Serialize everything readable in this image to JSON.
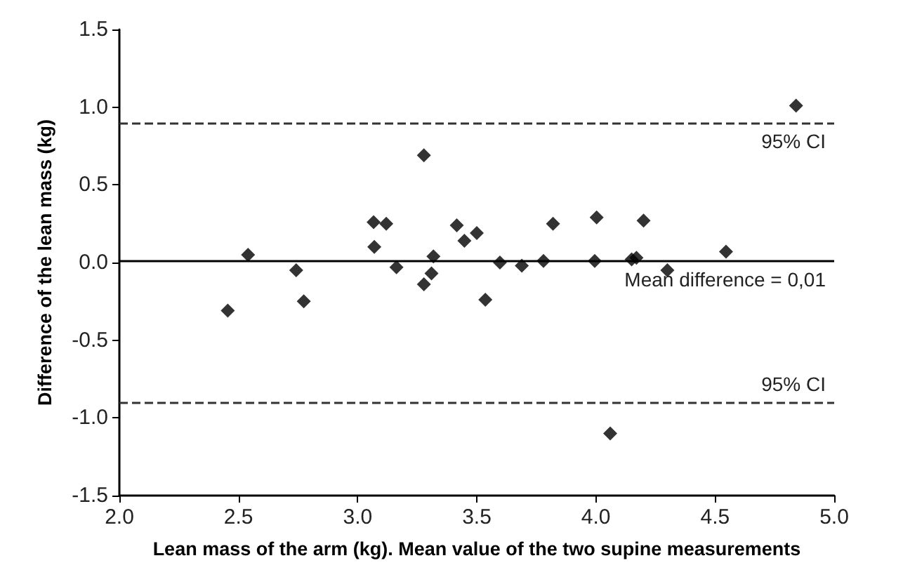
{
  "chart_data": {
    "type": "scatter",
    "xlabel": "Lean mass of the arm (kg). Mean value of the two supine measurements",
    "ylabel": "Difference of the lean mass (kg)",
    "x": [
      2.455,
      2.54,
      2.742,
      2.774,
      3.07,
      3.067,
      3.12,
      3.163,
      3.278,
      3.278,
      3.31,
      3.318,
      3.416,
      3.448,
      3.5,
      3.536,
      3.597,
      3.689,
      3.78,
      3.82,
      3.995,
      4.003,
      4.15,
      4.17,
      4.2,
      4.3,
      4.546,
      4.84,
      4.06
    ],
    "values": [
      -0.31,
      0.05,
      -0.05,
      -0.25,
      0.1,
      0.26,
      0.25,
      -0.03,
      0.69,
      -0.14,
      -0.07,
      0.04,
      0.24,
      0.14,
      0.19,
      -0.24,
      0.0,
      -0.02,
      0.01,
      0.25,
      0.01,
      0.29,
      0.02,
      0.03,
      0.27,
      -0.05,
      0.07,
      1.01,
      -1.1
    ],
    "color": "#000000",
    "marker": "diamond",
    "grid": false,
    "xlim": [
      2.0,
      5.0
    ],
    "xticks": [
      {
        "value": 2.0,
        "label": "2.0"
      },
      {
        "value": 2.5,
        "label": "2.5"
      },
      {
        "value": 3.0,
        "label": "3.0"
      },
      {
        "value": 3.5,
        "label": "3.5"
      },
      {
        "value": 4.0,
        "label": "4.0"
      },
      {
        "value": 4.5,
        "label": "4.5"
      },
      {
        "value": 5.0,
        "label": "5.0"
      }
    ],
    "ylim": [
      -1.5,
      1.5
    ],
    "yticks": [
      {
        "value": -1.5,
        "label": "-1.5"
      },
      {
        "value": -1.0,
        "label": "-1.0"
      },
      {
        "value": -0.5,
        "label": "-0.5"
      },
      {
        "value": 0.0,
        "label": "0.0"
      },
      {
        "value": 0.5,
        "label": "0.5"
      },
      {
        "value": 1.0,
        "label": "1.0"
      },
      {
        "value": 1.5,
        "label": "1.5"
      }
    ],
    "ref_lines": [
      {
        "axis": "y",
        "value": 0.9,
        "label": "95% CI",
        "line_style": "dashed",
        "color": "#333333"
      },
      {
        "axis": "y",
        "value": 0.01,
        "label": "Mean difference = 0,01",
        "line_style": "solid",
        "color": "#000000"
      },
      {
        "axis": "y",
        "value": -0.9,
        "label": "95% CI",
        "line_style": "dashed",
        "color": "#333333"
      }
    ]
  }
}
